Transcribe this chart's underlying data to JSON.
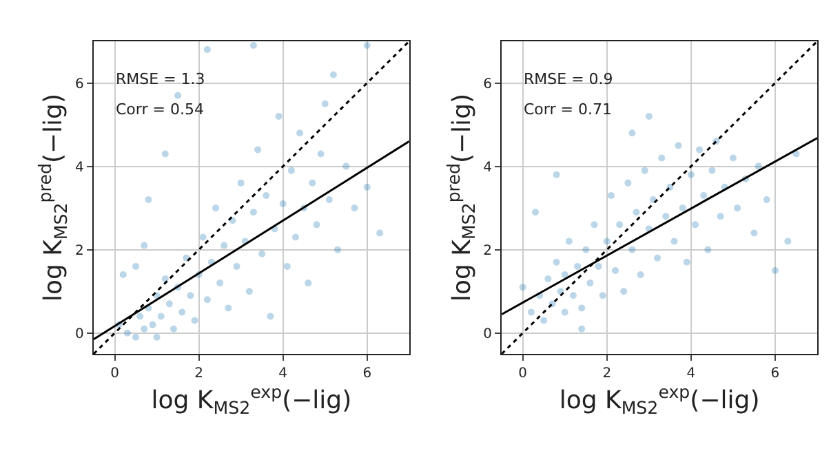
{
  "chart_data": [
    {
      "type": "scatter",
      "xlabel": "log K$_{MS2}$$^{exp}$(−lig)",
      "ylabel": "log K$_{MS2}$$^{pred}$(−lig)",
      "xlim": [
        -0.5,
        7
      ],
      "ylim": [
        -0.5,
        7
      ],
      "xticks": [
        0,
        2,
        4,
        6
      ],
      "yticks": [
        0,
        2,
        4,
        6
      ],
      "grid": true,
      "annotations": [
        "RMSE = 1.3",
        "Corr = 0.54"
      ],
      "series": [
        {
          "color": "#1f77b4",
          "marker": "circle",
          "x": [
            0.1,
            0.3,
            0.5,
            0.6,
            0.7,
            0.8,
            0.9,
            1.0,
            1.0,
            1.1,
            1.2,
            1.3,
            1.4,
            1.5,
            1.6,
            1.7,
            1.8,
            1.9,
            2.0,
            2.1,
            2.2,
            2.3,
            2.4,
            2.5,
            2.6,
            2.7,
            2.8,
            2.9,
            3.0,
            3.1,
            3.2,
            3.3,
            3.4,
            3.5,
            3.6,
            3.7,
            3.8,
            3.9,
            4.0,
            4.1,
            4.2,
            4.3,
            4.4,
            4.5,
            4.6,
            4.7,
            4.8,
            4.9,
            5.0,
            5.1,
            5.3,
            5.5,
            5.7,
            6.0,
            6.3,
            1.2,
            0.8,
            1.5,
            2.2,
            3.3,
            0.5,
            0.2,
            6.0,
            5.2,
            0.7
          ],
          "values": [
            0.2,
            0.0,
            -0.1,
            0.4,
            0.1,
            0.6,
            0.2,
            0.9,
            -0.1,
            0.4,
            1.3,
            0.7,
            0.1,
            1.1,
            0.5,
            1.8,
            0.9,
            0.3,
            1.4,
            2.3,
            0.8,
            1.7,
            3.0,
            1.2,
            2.1,
            0.6,
            2.7,
            1.6,
            3.6,
            2.2,
            1.0,
            2.9,
            4.4,
            1.9,
            3.3,
            0.4,
            2.5,
            5.2,
            3.1,
            1.6,
            3.9,
            2.3,
            4.8,
            3.0,
            1.2,
            3.6,
            2.6,
            4.3,
            5.5,
            3.2,
            2.0,
            4.0,
            3.0,
            3.5,
            2.4,
            4.3,
            3.2,
            5.7,
            6.8,
            6.9,
            1.6,
            1.4,
            6.9,
            6.2,
            2.1
          ]
        },
        {
          "type": "line",
          "color": "#000000",
          "line_style": "solid",
          "x": [
            -0.5,
            7
          ],
          "values": [
            -0.15,
            4.6
          ]
        },
        {
          "type": "line",
          "color": "#000000",
          "line_style": "dotted",
          "x": [
            -0.5,
            7
          ],
          "values": [
            -0.5,
            7
          ]
        }
      ]
    },
    {
      "type": "scatter",
      "xlabel": "log K$_{MS2}$$^{exp}$(−lig)",
      "ylabel": "log K$_{MS2}$$^{pred}$(−lig)",
      "xlim": [
        -0.5,
        7
      ],
      "ylim": [
        -0.5,
        7
      ],
      "xticks": [
        0,
        2,
        4,
        6
      ],
      "yticks": [
        0,
        2,
        4,
        6
      ],
      "grid": true,
      "annotations": [
        "RMSE = 0.9",
        "Corr = 0.71"
      ],
      "series": [
        {
          "color": "#1f77b4",
          "marker": "circle",
          "x": [
            0.2,
            0.4,
            0.5,
            0.6,
            0.7,
            0.8,
            0.9,
            1.0,
            1.0,
            1.1,
            1.2,
            1.3,
            1.4,
            1.5,
            1.6,
            1.7,
            1.8,
            1.9,
            2.0,
            2.1,
            2.2,
            2.3,
            2.4,
            2.5,
            2.6,
            2.7,
            2.8,
            2.9,
            3.0,
            3.1,
            3.2,
            3.3,
            3.4,
            3.5,
            3.6,
            3.7,
            3.8,
            3.9,
            4.0,
            4.1,
            4.2,
            4.3,
            4.4,
            4.5,
            4.6,
            4.7,
            4.8,
            5.0,
            5.1,
            5.3,
            5.5,
            5.6,
            5.8,
            6.0,
            6.3,
            0.3,
            0.8,
            2.6,
            1.4,
            3.0,
            6.5,
            0.0
          ],
          "values": [
            0.5,
            0.9,
            0.3,
            1.3,
            0.7,
            1.7,
            1.0,
            0.5,
            1.4,
            2.2,
            0.9,
            1.6,
            0.6,
            2.0,
            1.2,
            2.6,
            1.6,
            0.9,
            2.2,
            3.3,
            1.5,
            2.6,
            1.0,
            3.6,
            2.0,
            2.9,
            1.4,
            3.9,
            2.5,
            3.2,
            1.8,
            4.2,
            2.8,
            3.5,
            2.2,
            4.5,
            3.0,
            1.7,
            3.8,
            2.6,
            4.4,
            3.3,
            2.0,
            3.9,
            4.6,
            2.8,
            3.5,
            4.2,
            3.0,
            3.7,
            2.4,
            4.0,
            3.2,
            1.5,
            2.2,
            2.9,
            3.8,
            4.8,
            0.1,
            5.2,
            4.3,
            1.1
          ]
        },
        {
          "type": "line",
          "color": "#000000",
          "line_style": "solid",
          "x": [
            -0.5,
            7
          ],
          "values": [
            0.45,
            4.68
          ]
        },
        {
          "type": "line",
          "color": "#000000",
          "line_style": "dotted",
          "x": [
            -0.5,
            7
          ],
          "values": [
            -0.5,
            7
          ]
        }
      ]
    }
  ]
}
